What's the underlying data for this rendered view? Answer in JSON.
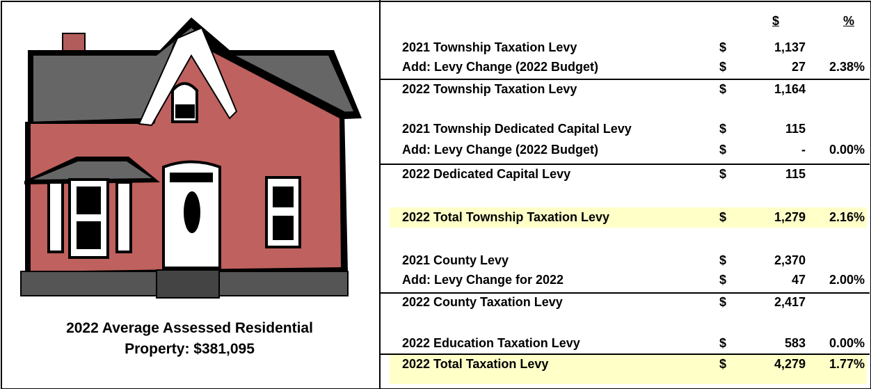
{
  "caption": {
    "lines": [
      "2022 Average Assessed Residential",
      "Property: $381,095"
    ]
  },
  "table": {
    "header": {
      "currency": "$",
      "percent": "%"
    },
    "rows": [
      {
        "label": "2021 Township Taxation Levy",
        "currency": "$",
        "amount": "1,137"
      },
      {
        "label": "Add: Levy Change (2022 Budget)",
        "currency": "$",
        "amount": "27",
        "percent": "2.38%"
      },
      {
        "label": "2022 Township Taxation Levy",
        "currency": "$",
        "amount": "1,164"
      },
      {
        "label": "2021 Township Dedicated Capital Levy",
        "currency": "$",
        "amount": "115"
      },
      {
        "label": "Add: Levy Change (2022 Budget)",
        "currency": "$",
        "amount": "-",
        "percent": "0.00%"
      },
      {
        "label": "2022 Dedicated Capital Levy",
        "currency": "$",
        "amount": "115"
      },
      {
        "label": "2022 Total Township Taxation Levy",
        "currency": "$",
        "amount": "1,279",
        "percent": "2.16%"
      },
      {
        "label": "2021 County Levy",
        "currency": "$",
        "amount": "2,370"
      },
      {
        "label": "Add: Levy Change for 2022",
        "currency": "$",
        "amount": "47",
        "percent": "2.00%"
      },
      {
        "label": "2022 County Taxation Levy",
        "currency": "$",
        "amount": "2,417"
      },
      {
        "label": "2022 Education Taxation Levy",
        "currency": "$",
        "amount": "583",
        "percent": "0.00%"
      },
      {
        "label": "2022 Total Taxation Levy",
        "currency": "$",
        "amount": "4,279",
        "percent": "1.77%"
      }
    ]
  }
}
